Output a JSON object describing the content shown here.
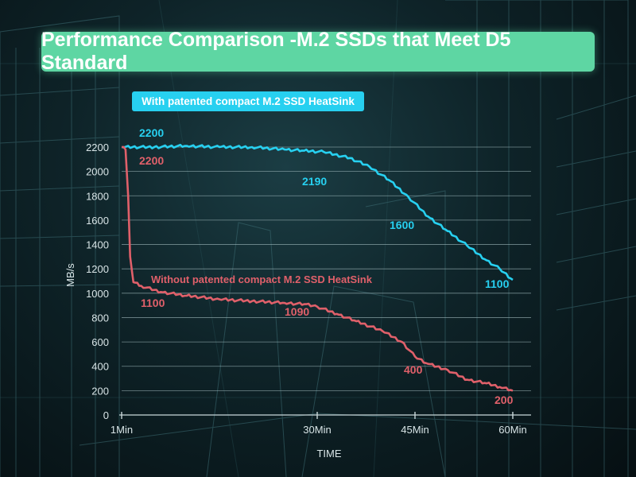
{
  "title": "Performance Comparison -M.2 SSDs that Meet D5 Standard",
  "colors": {
    "title_bg": "#5ed6a3",
    "series_with": "#27d0f0",
    "series_without": "#e0606a",
    "axis": "#d8e4e6"
  },
  "chart_data": {
    "type": "line",
    "xlabel": "TIME",
    "ylabel": "MB/s",
    "xlim": [
      0,
      60
    ],
    "ylim": [
      0,
      2200
    ],
    "y_ticks": [
      0,
      200,
      400,
      600,
      800,
      1000,
      1200,
      1400,
      1600,
      1800,
      2000,
      2200
    ],
    "x_ticks": [
      {
        "value": 0,
        "label": "1Min"
      },
      {
        "value": 30,
        "label": "30Min"
      },
      {
        "value": 45,
        "label": "45Min"
      },
      {
        "value": 60,
        "label": "60Min"
      }
    ],
    "grid": true,
    "series": [
      {
        "name": "With patented compact M.2 SSD HeatSink",
        "color": "#27d0f0",
        "x": [
          0,
          5,
          10,
          15,
          20,
          25,
          28,
          31,
          35,
          38,
          41,
          44,
          47,
          50,
          53,
          56,
          58,
          60
        ],
        "values": [
          2200,
          2200,
          2210,
          2200,
          2200,
          2180,
          2170,
          2160,
          2110,
          2040,
          1930,
          1790,
          1630,
          1510,
          1390,
          1270,
          1200,
          1110
        ],
        "annotations": [
          {
            "x": 3,
            "y": 2200,
            "label": "2200"
          },
          {
            "x": 30,
            "y": 2190,
            "label": "2190"
          },
          {
            "x": 45,
            "y": 1600,
            "label": "1600"
          },
          {
            "x": 59,
            "y": 1100,
            "label": "1100"
          }
        ]
      },
      {
        "name": "Without patented compact M.2 SSD HeatSink",
        "color": "#e0606a",
        "x": [
          0,
          0.6,
          1,
          1.3,
          1.8,
          3,
          6,
          10,
          15,
          20,
          25,
          28,
          30,
          33,
          36,
          40,
          43,
          45,
          47,
          50,
          53,
          56,
          58,
          60
        ],
        "values": [
          2200,
          2180,
          1800,
          1300,
          1090,
          1060,
          1010,
          980,
          950,
          935,
          920,
          910,
          890,
          830,
          770,
          690,
          600,
          480,
          420,
          370,
          290,
          260,
          230,
          200
        ],
        "annotations": [
          {
            "x": 3,
            "y": 2200,
            "label": "2200"
          },
          {
            "x": 3,
            "y": 1100,
            "label": "1100"
          },
          {
            "x": 28,
            "y": 1090,
            "label": "1090"
          },
          {
            "x": 44,
            "y": 400,
            "label": "400"
          },
          {
            "x": 59,
            "y": 200,
            "label": "200"
          }
        ]
      }
    ]
  }
}
